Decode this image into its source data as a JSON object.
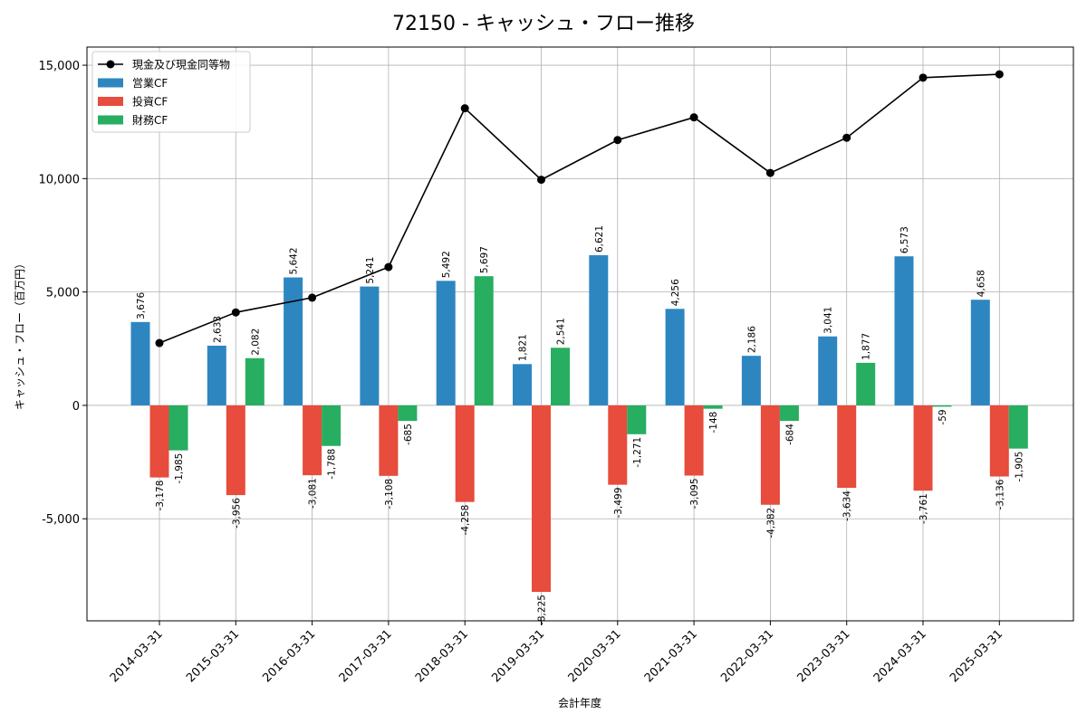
{
  "chart_data": {
    "type": "bar",
    "title": "72150 - キャッシュ・フロー推移",
    "xlabel": "会計年度",
    "ylabel": "キャッシュ・フロー（百万円）",
    "categories": [
      "2014-03-31",
      "2015-03-31",
      "2016-03-31",
      "2017-03-31",
      "2018-03-31",
      "2019-03-31",
      "2020-03-31",
      "2021-03-31",
      "2022-03-31",
      "2023-03-31",
      "2024-03-31",
      "2025-03-31"
    ],
    "series": [
      {
        "name": "営業CF",
        "kind": "bar",
        "color": "#2e86c1",
        "values": [
          3676,
          2633,
          5642,
          5241,
          5492,
          1821,
          6621,
          4256,
          2186,
          3041,
          6573,
          4658
        ],
        "labels": [
          "3,676",
          "2,633",
          "5,642",
          "5,241",
          "5,492",
          "1,821",
          "6,621",
          "4,256",
          "2,186",
          "3,041",
          "6,573",
          "4,658"
        ]
      },
      {
        "name": "投資CF",
        "kind": "bar",
        "color": "#e74c3c",
        "values": [
          -3178,
          -3956,
          -3081,
          -3108,
          -4258,
          -8225,
          -3499,
          -3095,
          -4382,
          -3634,
          -3761,
          -3136
        ],
        "labels": [
          "-3,178",
          "-3,956",
          "-3,081",
          "-3,108",
          "-4,258",
          "-8,225",
          "-3,499",
          "-3,095",
          "-4,382",
          "-3,634",
          "-3,761",
          "-3,136"
        ]
      },
      {
        "name": "財務CF",
        "kind": "bar",
        "color": "#27ae60",
        "values": [
          -1985,
          2082,
          -1788,
          -685,
          5697,
          2541,
          -1271,
          -148,
          -684,
          1877,
          -59,
          -1905
        ],
        "labels": [
          "-1,985",
          "2,082",
          "-1,788",
          "-685",
          "5,697",
          "2,541",
          "-1,271",
          "-148",
          "-684",
          "1,877",
          "-59",
          "-1,905"
        ]
      },
      {
        "name": "現金及び現金同等物",
        "kind": "line",
        "color": "#000000",
        "values": [
          2750,
          4100,
          4750,
          6100,
          13100,
          9950,
          11700,
          12700,
          10250,
          11800,
          14450,
          14600
        ]
      }
    ],
    "ylim": [
      -9500,
      15800
    ],
    "yticks": [
      -5000,
      0,
      5000,
      10000,
      15000
    ],
    "ytick_labels": [
      "-5,000",
      "0",
      "5,000",
      "10,000",
      "15,000"
    ],
    "grid": true,
    "legend_position": "top-left"
  }
}
